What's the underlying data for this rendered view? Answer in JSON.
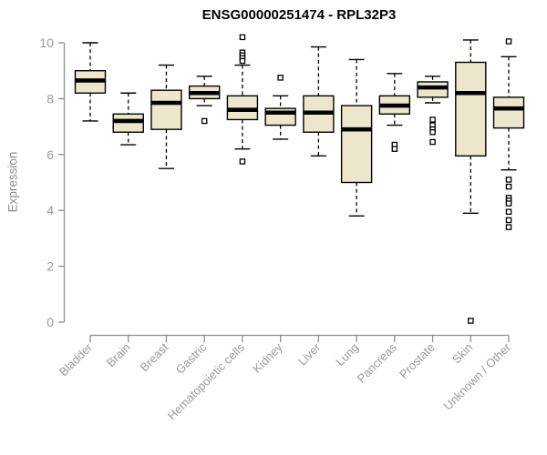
{
  "chart_data": {
    "type": "boxplot",
    "title": "ENSG00000251474 - RPL32P3",
    "ylabel": "Expression",
    "xlabel": "",
    "ylim": [
      0,
      10
    ],
    "yticks": [
      0,
      2,
      4,
      6,
      8,
      10
    ],
    "grid": false,
    "legend": "none",
    "categories": [
      "Bladder",
      "Brain",
      "Breast",
      "Gastric",
      "Hematopoietic cells",
      "Kidney",
      "Liver",
      "Lung",
      "Pancreas",
      "Prostate",
      "Skin",
      "Unknown / Other"
    ],
    "series": [
      {
        "category": "Bladder",
        "whisker_low": 7.2,
        "q1": 8.2,
        "median": 8.65,
        "q3": 9.0,
        "whisker_high": 10.0,
        "outliers": []
      },
      {
        "category": "Brain",
        "whisker_low": 6.35,
        "q1": 6.8,
        "median": 7.2,
        "q3": 7.45,
        "whisker_high": 8.2,
        "outliers": []
      },
      {
        "category": "Breast",
        "whisker_low": 5.5,
        "q1": 6.9,
        "median": 7.85,
        "q3": 8.3,
        "whisker_high": 9.2,
        "outliers": []
      },
      {
        "category": "Gastric",
        "whisker_low": 7.75,
        "q1": 8.0,
        "median": 8.2,
        "q3": 8.45,
        "whisker_high": 8.8,
        "outliers": [
          7.2
        ]
      },
      {
        "category": "Hematopoietic cells",
        "whisker_low": 6.2,
        "q1": 7.25,
        "median": 7.6,
        "q3": 8.1,
        "whisker_high": 9.2,
        "outliers": [
          10.2,
          9.65,
          9.55,
          9.45,
          9.35,
          5.75
        ]
      },
      {
        "category": "Kidney",
        "whisker_low": 6.55,
        "q1": 7.05,
        "median": 7.5,
        "q3": 7.65,
        "whisker_high": 8.1,
        "outliers": [
          8.75
        ]
      },
      {
        "category": "Liver",
        "whisker_low": 5.95,
        "q1": 6.8,
        "median": 7.5,
        "q3": 8.1,
        "whisker_high": 9.85,
        "outliers": []
      },
      {
        "category": "Lung",
        "whisker_low": 3.8,
        "q1": 5.0,
        "median": 6.9,
        "q3": 7.75,
        "whisker_high": 9.4,
        "outliers": []
      },
      {
        "category": "Pancreas",
        "whisker_low": 7.05,
        "q1": 7.45,
        "median": 7.75,
        "q3": 8.1,
        "whisker_high": 8.9,
        "outliers": [
          6.35,
          6.2
        ]
      },
      {
        "category": "Prostate",
        "whisker_low": 7.85,
        "q1": 8.05,
        "median": 8.4,
        "q3": 8.6,
        "whisker_high": 8.8,
        "outliers": [
          7.25,
          7.05,
          6.9,
          6.8,
          6.45
        ]
      },
      {
        "category": "Skin",
        "whisker_low": 3.9,
        "q1": 5.95,
        "median": 8.2,
        "q3": 9.3,
        "whisker_high": 10.1,
        "outliers": [
          0.05
        ]
      },
      {
        "category": "Unknown / Other",
        "whisker_low": 5.45,
        "q1": 6.95,
        "median": 7.65,
        "q3": 8.05,
        "whisker_high": 9.5,
        "outliers": [
          10.05,
          5.1,
          4.85,
          4.45,
          4.35,
          4.25,
          3.95,
          3.65,
          3.4
        ]
      }
    ],
    "colors": {
      "box_fill": "#ECE7CB",
      "box_border": "#000000",
      "median": "#000000",
      "whisker": "#000000",
      "outlier_stroke": "#000000",
      "outlier_fill": "#FFFFFF",
      "axis": "#8C8C8C",
      "tick_label": "#9A9A9A",
      "title": "#000000"
    }
  }
}
